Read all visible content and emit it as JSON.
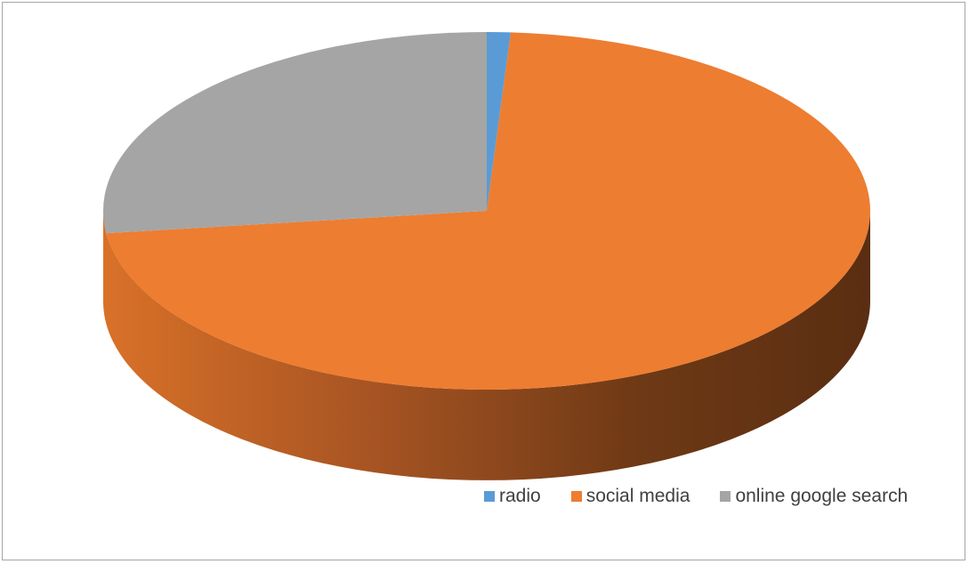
{
  "chart_data": {
    "type": "pie",
    "style": "3d",
    "title": "",
    "series": [
      {
        "values": [
          1,
          72,
          27
        ]
      }
    ],
    "categories": [
      "radio",
      "social media",
      "online google search"
    ],
    "colors": [
      "#5b9bd5",
      "#ed7d31",
      "#a5a5a5"
    ],
    "legend_position": "bottom-right"
  },
  "legend": {
    "items": [
      {
        "label": "radio",
        "color": "#5b9bd5"
      },
      {
        "label": "social media",
        "color": "#ed7d31"
      },
      {
        "label": "online google search",
        "color": "#a5a5a5"
      }
    ]
  }
}
